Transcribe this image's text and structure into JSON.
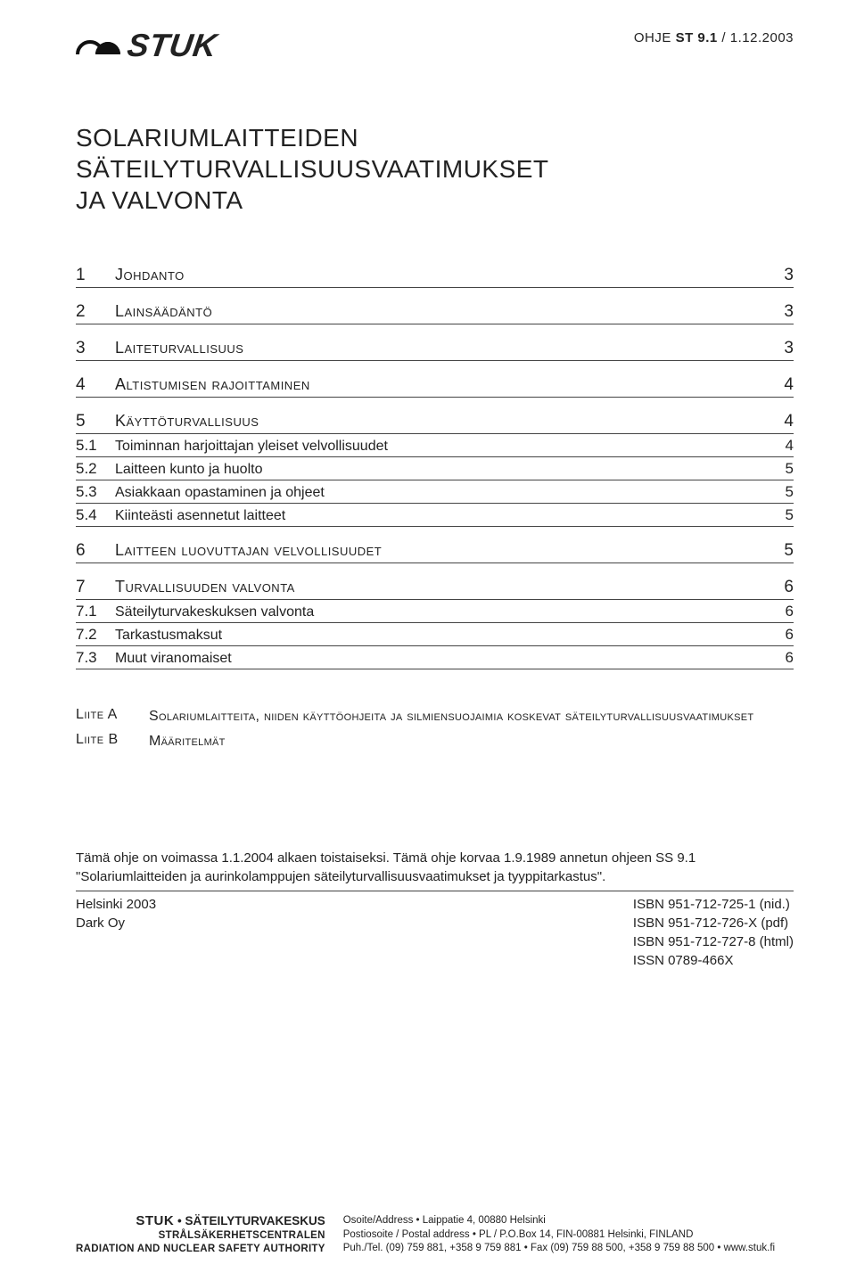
{
  "logo_text": "STUK",
  "guide_ref_prefix": "OHJE ",
  "guide_ref_bold": "ST 9.1",
  "guide_ref_suffix": " / 1.12.2003",
  "title_line1": "SOLARIUMLAITTEIDEN",
  "title_line2": "SÄTEILYTURVALLISUUSVAATIMUKSET",
  "title_line3": "JA VALVONTA",
  "toc": [
    {
      "level": "top",
      "num": "1",
      "label": "Johdanto",
      "page": "3"
    },
    {
      "level": "top",
      "num": "2",
      "label": "Lainsäädäntö",
      "page": "3"
    },
    {
      "level": "top",
      "num": "3",
      "label": "Laiteturvallisuus",
      "page": "3"
    },
    {
      "level": "top",
      "num": "4",
      "label": "Altistumisen rajoittaminen",
      "page": "4"
    },
    {
      "level": "top",
      "num": "5",
      "label": "Käyttöturvallisuus",
      "page": "4"
    },
    {
      "level": "sub",
      "num": "5.1",
      "label": "Toiminnan harjoittajan yleiset velvollisuudet",
      "page": "4"
    },
    {
      "level": "sub",
      "num": "5.2",
      "label": "Laitteen kunto ja huolto",
      "page": "5"
    },
    {
      "level": "sub",
      "num": "5.3",
      "label": "Asiakkaan opastaminen ja ohjeet",
      "page": "5"
    },
    {
      "level": "sub",
      "num": "5.4",
      "label": "Kiinteästi asennetut laitteet",
      "page": "5"
    },
    {
      "level": "top",
      "num": "6",
      "label": "Laitteen luovuttajan velvollisuudet",
      "page": "5"
    },
    {
      "level": "top",
      "num": "7",
      "label": "Turvallisuuden valvonta",
      "page": "6"
    },
    {
      "level": "sub",
      "num": "7.1",
      "label": "Säteilyturvakeskuksen valvonta",
      "page": "6"
    },
    {
      "level": "sub",
      "num": "7.2",
      "label": "Tarkastusmaksut",
      "page": "6"
    },
    {
      "level": "sub",
      "num": "7.3",
      "label": "Muut viranomaiset",
      "page": "6"
    }
  ],
  "appendices": [
    {
      "key": "Liite A",
      "label": "Solariumlaitteita, niiden käyttöohjeita ja silmiensuojaimia koskevat säteilyturvallisuusvaatimukset"
    },
    {
      "key": "Liite B",
      "label": "Määritelmät"
    }
  ],
  "validity_text": "Tämä ohje on voimassa 1.1.2004 alkaen toistaiseksi. Tämä ohje korvaa 1.9.1989 annetun ohjeen SS 9.1 \"Solariumlaitteiden ja aurinkolamppujen säteilyturvallisuusvaatimukset ja tyyppitarkastus\".",
  "pub_left_line1": "Helsinki 2003",
  "pub_left_line2": "Dark Oy",
  "pub_right_line1": "ISBN 951-712-725-1 (nid.)",
  "pub_right_line2": "ISBN 951-712-726-X (pdf)",
  "pub_right_line3": "ISBN 951-712-727-8 (html)",
  "pub_right_line4": "ISSN 0789-466X",
  "footer_brand_big": "STUK",
  "footer_brand_rest": " • SÄTEILYTURVAKESKUS",
  "footer_brand_line2": "STRÅLSÄKERHETSCENTRALEN",
  "footer_brand_line3": "RADIATION AND NUCLEAR SAFETY AUTHORITY",
  "footer_addr_line1": "Osoite/Address • Laippatie 4, 00880 Helsinki",
  "footer_addr_line2": "Postiosoite / Postal address • PL / P.O.Box 14, FIN-00881 Helsinki, FINLAND",
  "footer_addr_line3": "Puh./Tel. (09) 759 881, +358 9 759 881 • Fax (09) 759 88 500, +358 9 759 88 500 • www.stuk.fi",
  "colors": {
    "text": "#222222",
    "rule": "#444444",
    "background": "#ffffff"
  }
}
